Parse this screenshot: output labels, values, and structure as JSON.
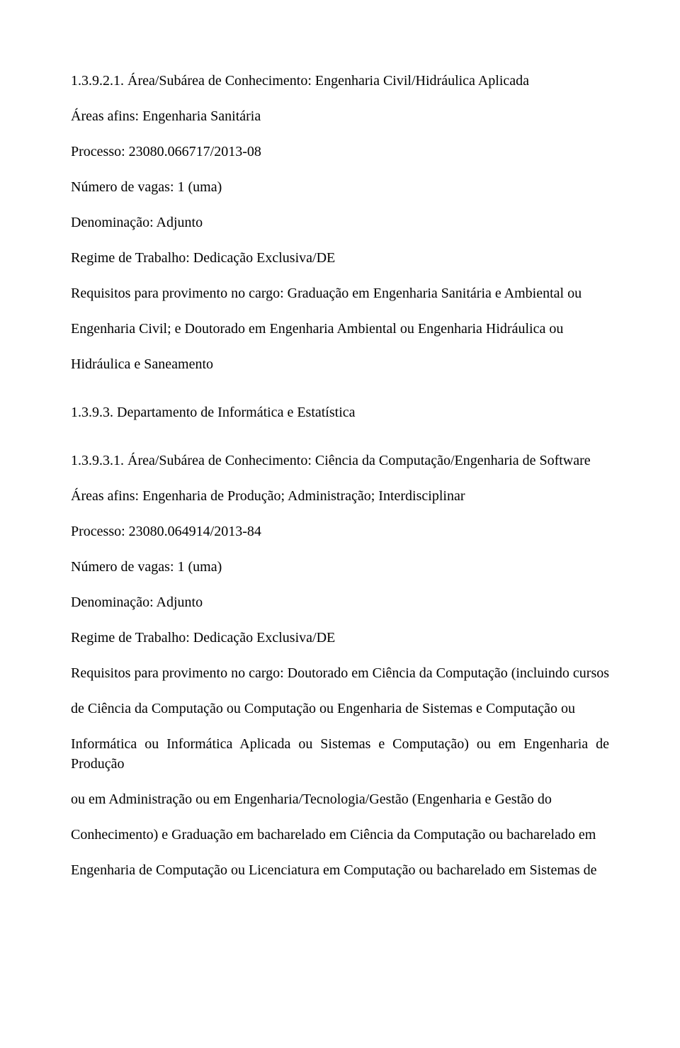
{
  "section1": {
    "heading": "1.3.9.2.1. Área/Subárea de Conhecimento: Engenharia Civil/Hidráulica Aplicada",
    "areasAfins": "Áreas afins: Engenharia Sanitária",
    "processo": "Processo: 23080.066717/2013-08",
    "vagas": "Número de vagas: 1 (uma)",
    "denominacao": "Denominação: Adjunto",
    "regime": "Regime de Trabalho: Dedicação Exclusiva/DE",
    "requisitos1": "Requisitos para provimento no cargo: Graduação em Engenharia Sanitária e Ambiental ou",
    "requisitos2": "Engenharia Civil; e Doutorado em Engenharia Ambiental ou Engenharia Hidráulica ou",
    "requisitos3": "Hidráulica e Saneamento"
  },
  "section2": {
    "heading": "1.3.9.3. Departamento de Informática e Estatística"
  },
  "section3": {
    "heading": "1.3.9.3.1. Área/Subárea de Conhecimento: Ciência da Computação/Engenharia de Software",
    "areasAfins": "Áreas afins: Engenharia de Produção; Administração; Interdisciplinar",
    "processo": "Processo: 23080.064914/2013-84",
    "vagas": "Número de vagas: 1 (uma)",
    "denominacao": "Denominação: Adjunto",
    "regime": "Regime de Trabalho: Dedicação Exclusiva/DE",
    "requisitos1": "Requisitos para provimento no cargo: Doutorado em Ciência da Computação (incluindo cursos",
    "requisitos2": "de Ciência da Computação ou Computação ou Engenharia de Sistemas e Computação ou",
    "requisitos3": "Informática ou Informática Aplicada ou Sistemas e Computação) ou em Engenharia de Produção",
    "requisitos4": "ou em Administração ou em Engenharia/Tecnologia/Gestão (Engenharia e Gestão do",
    "requisitos5": "Conhecimento) e Graduação em bacharelado em Ciência da Computação ou bacharelado em",
    "requisitos6": "Engenharia de Computação ou Licenciatura em Computação ou bacharelado em Sistemas de"
  }
}
